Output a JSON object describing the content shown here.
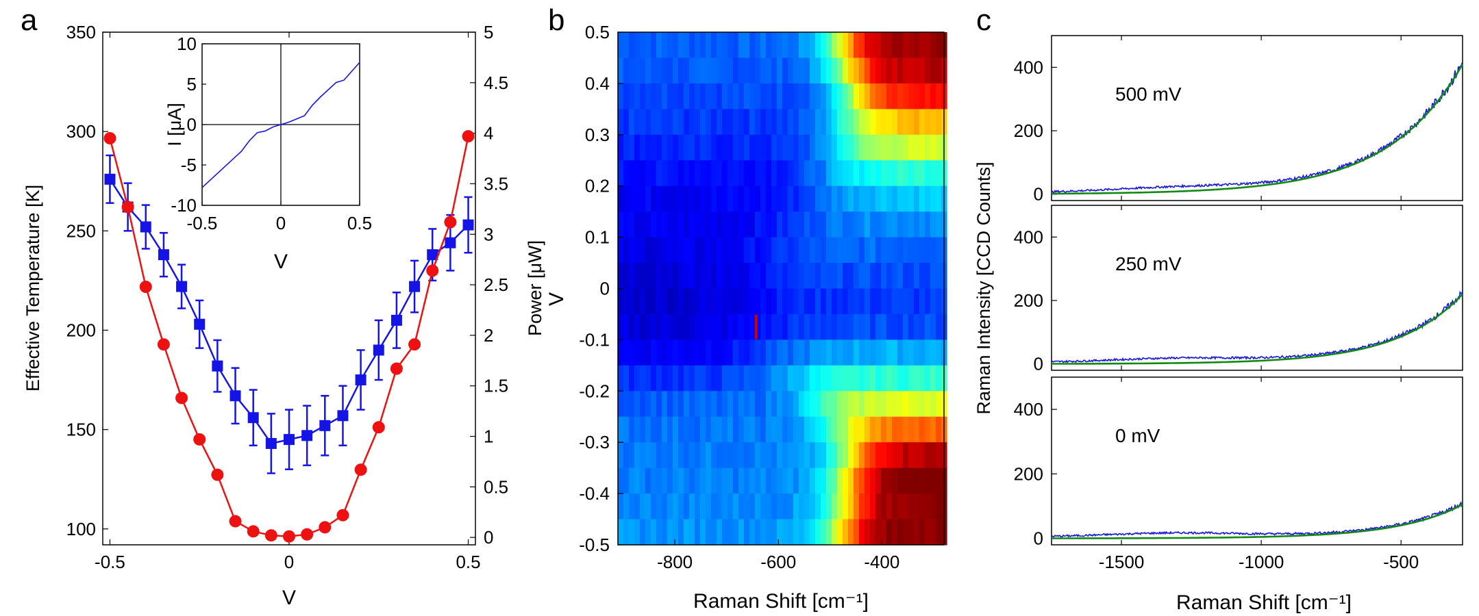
{
  "panels": [
    {
      "letter": "a"
    },
    {
      "letter": "b"
    },
    {
      "letter": "c"
    }
  ],
  "colors": {
    "blue": "#1414e6",
    "red": "#ee1111",
    "green": "#118811"
  },
  "chart_data": [
    {
      "id": "a",
      "type": "line",
      "xlabel": "V",
      "ylabel": "Effective Temperature [K]",
      "y2label": "Power [μW]",
      "xlim": [
        -0.52,
        0.52
      ],
      "ylim": [
        92,
        350
      ],
      "y2lim": [
        -0.0733,
        5
      ],
      "xticks": [
        "-0.5",
        "0",
        "0.5"
      ],
      "yticks": [
        "100",
        "150",
        "200",
        "250",
        "300",
        "350"
      ],
      "y2ticks": [
        "0",
        "0.5",
        "1",
        "1.5",
        "2",
        "2.5",
        "3",
        "3.5",
        "4",
        "4.5",
        "5"
      ],
      "series": [
        {
          "name": "Effective Temperature",
          "axis": "left",
          "marker": "square",
          "color": "#1414e6",
          "x": [
            -0.5,
            -0.45,
            -0.4,
            -0.35,
            -0.3,
            -0.25,
            -0.2,
            -0.15,
            -0.1,
            -0.05,
            0,
            0.05,
            0.1,
            0.15,
            0.2,
            0.25,
            0.3,
            0.35,
            0.4,
            0.45,
            0.5
          ],
          "y": [
            276,
            262,
            252,
            238,
            222,
            203,
            182,
            167,
            156,
            143,
            145,
            147,
            152,
            157,
            175,
            190,
            205,
            222,
            238,
            244,
            253
          ],
          "err": [
            12,
            12,
            11,
            11,
            11,
            12,
            13,
            14,
            14,
            15,
            15,
            15,
            15,
            15,
            15,
            15,
            14,
            13,
            13,
            14,
            14
          ]
        },
        {
          "name": "Power",
          "axis": "right",
          "marker": "circle",
          "color": "#ee1111",
          "x": [
            -0.5,
            -0.45,
            -0.4,
            -0.35,
            -0.3,
            -0.25,
            -0.2,
            -0.15,
            -0.1,
            -0.05,
            0,
            0.05,
            0.1,
            0.15,
            0.2,
            0.25,
            0.3,
            0.35,
            0.4,
            0.45,
            0.5
          ],
          "y": [
            3.95,
            3.27,
            2.48,
            1.91,
            1.38,
            0.97,
            0.62,
            0.16,
            0.06,
            0.02,
            0.01,
            0.03,
            0.1,
            0.22,
            0.67,
            1.09,
            1.67,
            1.91,
            2.64,
            3.12,
            3.97
          ]
        }
      ],
      "inset": {
        "xlabel": "V",
        "ylabel": "I [μA]",
        "xlim": [
          -0.5,
          0.5
        ],
        "ylim": [
          -10,
          10
        ],
        "xticks": [
          "-0.5",
          "0",
          "0.5"
        ],
        "yticks": [
          "-10",
          "-5",
          "0",
          "5",
          "10"
        ],
        "x": [
          -0.5,
          -0.45,
          -0.4,
          -0.35,
          -0.3,
          -0.25,
          -0.2,
          -0.15,
          -0.1,
          -0.05,
          0,
          0.05,
          0.1,
          0.15,
          0.2,
          0.25,
          0.3,
          0.35,
          0.4,
          0.45,
          0.5
        ],
        "y": [
          -7.8,
          -6.9,
          -6.0,
          -5.1,
          -4.2,
          -3.3,
          -2.0,
          -1.0,
          -0.8,
          -0.3,
          0.0,
          0.3,
          0.7,
          1.1,
          2.4,
          3.4,
          4.3,
          5.2,
          5.5,
          6.6,
          7.7
        ]
      }
    },
    {
      "id": "b",
      "type": "heatmap",
      "xlabel": "Raman Shift [cm⁻¹]",
      "ylabel": "V",
      "xlim": [
        -910,
        -280
      ],
      "ylim": [
        -0.5,
        0.5
      ],
      "xticks": [
        "-800",
        "-600",
        "-400"
      ],
      "yticks": [
        "-0.5",
        "-0.4",
        "-0.3",
        "-0.2",
        "-0.1",
        "0",
        "0.1",
        "0.2",
        "0.3",
        "0.4",
        "0.5"
      ],
      "colormap": "jet",
      "rows": [
        {
          "v": 0.5,
          "onset": -480,
          "steep": 110,
          "base": 0.22,
          "max": 0.98
        },
        {
          "v": 0.45,
          "onset": -470,
          "steep": 110,
          "base": 0.21,
          "max": 0.95
        },
        {
          "v": 0.4,
          "onset": -460,
          "steep": 105,
          "base": 0.2,
          "max": 0.85
        },
        {
          "v": 0.35,
          "onset": -470,
          "steep": 120,
          "base": 0.18,
          "max": 0.7
        },
        {
          "v": 0.3,
          "onset": -480,
          "steep": 130,
          "base": 0.16,
          "max": 0.58
        },
        {
          "v": 0.25,
          "onset": -500,
          "steep": 150,
          "base": 0.14,
          "max": 0.42
        },
        {
          "v": 0.2,
          "onset": -520,
          "steep": 160,
          "base": 0.12,
          "max": 0.33
        },
        {
          "v": 0.15,
          "onset": -560,
          "steep": 180,
          "base": 0.11,
          "max": 0.27
        },
        {
          "v": 0.1,
          "onset": -600,
          "steep": 200,
          "base": 0.1,
          "max": 0.23
        },
        {
          "v": 0.05,
          "onset": -620,
          "steep": 200,
          "base": 0.09,
          "max": 0.2
        },
        {
          "v": 0.0,
          "onset": -640,
          "steep": 200,
          "base": 0.08,
          "max": 0.18
        },
        {
          "v": -0.05,
          "onset": -620,
          "steep": 200,
          "base": 0.09,
          "max": 0.2
        },
        {
          "v": -0.1,
          "onset": -600,
          "steep": 200,
          "base": 0.12,
          "max": 0.3
        },
        {
          "v": -0.15,
          "onset": -580,
          "steep": 180,
          "base": 0.17,
          "max": 0.42
        },
        {
          "v": -0.2,
          "onset": -520,
          "steep": 150,
          "base": 0.22,
          "max": 0.6
        },
        {
          "v": -0.25,
          "onset": -480,
          "steep": 130,
          "base": 0.24,
          "max": 0.78
        },
        {
          "v": -0.3,
          "onset": -460,
          "steep": 110,
          "base": 0.25,
          "max": 0.95
        },
        {
          "v": -0.35,
          "onset": -470,
          "steep": 110,
          "base": 0.25,
          "max": 1.0
        },
        {
          "v": -0.4,
          "onset": -470,
          "steep": 110,
          "base": 0.26,
          "max": 1.0
        },
        {
          "v": -0.45,
          "onset": -480,
          "steep": 110,
          "base": 0.27,
          "max": 1.0
        }
      ],
      "annotation": {
        "x": -643,
        "y": -0.075,
        "color": "#cc0000"
      }
    },
    {
      "id": "c",
      "type": "line",
      "xlabel": "Raman Shift [cm⁻¹]",
      "ylabel": "Raman Intensity [CCD Counts]",
      "xlim": [
        -1750,
        -280
      ],
      "ylim": [
        -20,
        500
      ],
      "xticks": [
        "-1500",
        "-1000",
        "-500"
      ],
      "yticks": [
        "0",
        "200",
        "400"
      ],
      "subplots": [
        {
          "label": "500 mV",
          "amp": 410,
          "decay": 265,
          "data_color": "#1414e6",
          "fit_color": "#118811"
        },
        {
          "label": "250 mV",
          "amp": 220,
          "decay": 235,
          "data_color": "#1414e6",
          "fit_color": "#118811"
        },
        {
          "label": "0 mV",
          "amp": 105,
          "decay": 230,
          "data_color": "#1414e6",
          "fit_color": "#118811"
        }
      ]
    }
  ]
}
